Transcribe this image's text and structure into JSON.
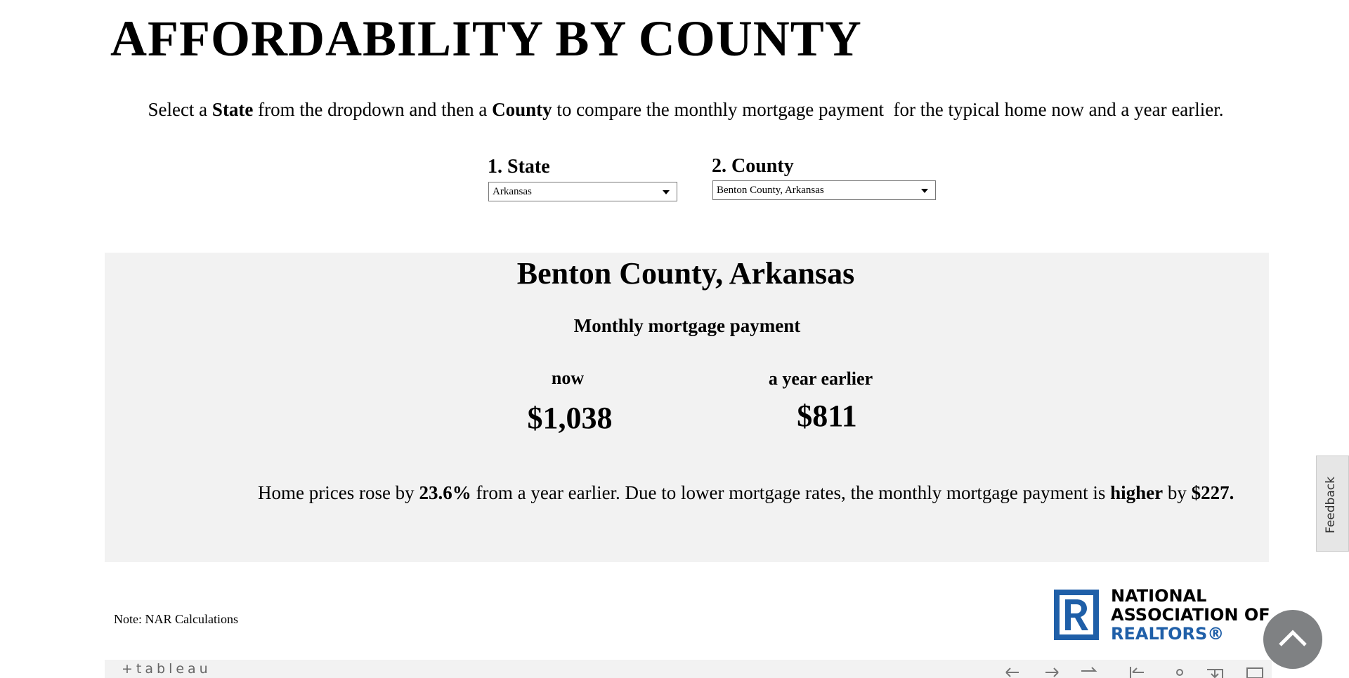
{
  "header": {
    "title": "AFFORDABILITY BY COUNTY",
    "instructions": [
      "Select a ",
      "State",
      " from the dropdown and then a ",
      "County",
      " to compare the monthly mortgage payment  for the typical home now and a year earlier."
    ]
  },
  "filters": [
    {
      "label": "1. State",
      "value": "Arkansas"
    },
    {
      "label": "2. County",
      "value": "Benton County, Arkansas"
    }
  ],
  "panel": {
    "title": "Benton County,  Arkansas",
    "subtitle": "Monthly mortgage payment",
    "columns": [
      {
        "label": "now",
        "value": "$1,038"
      },
      {
        "label": "a year earlier",
        "value": "$811"
      }
    ],
    "summary": [
      "Home prices rose by ",
      "23.6%",
      " from a year earlier. Due to lower mortgage rates, the monthly mortgage payment is ",
      "higher",
      " by ",
      "$227."
    ]
  },
  "note": "Note: NAR Calculations",
  "logo": [
    "NATIONAL",
    "ASSOCIATION OF",
    "REALTORS®"
  ],
  "feedback": "Feedback",
  "toolbar": {
    "brand": "+tableau"
  }
}
